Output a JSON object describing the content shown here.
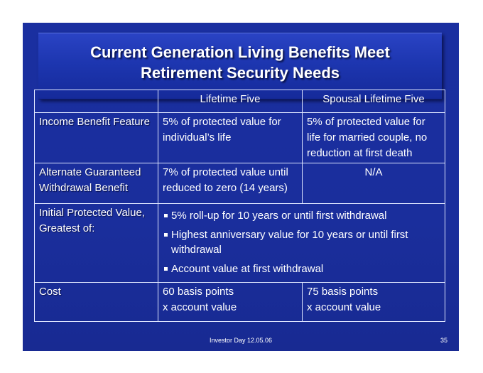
{
  "title": {
    "line1": "Current Generation Living Benefits Meet",
    "line2": "Retirement Security Needs"
  },
  "table": {
    "headers": [
      "",
      "Lifetime Five",
      "Spousal Lifetime Five"
    ],
    "rows": [
      {
        "label": "Income Benefit Feature",
        "lifetime_five": "5% of protected value for individual’s life",
        "spousal": "5% of protected value for life for married couple, no reduction at first death"
      },
      {
        "label": "Alternate Guaranteed Withdrawal Benefit",
        "lifetime_five": "7% of protected value until reduced to zero (14 years)",
        "spousal": "N/A"
      },
      {
        "label": "Initial Protected Value, Greatest of:",
        "bullets": [
          "5% roll-up for 10 years or until first withdrawal",
          "Highest anniversary value for 10 years or until first withdrawal",
          "Account value at first withdrawal"
        ]
      },
      {
        "label": "Cost",
        "lifetime_five_line1": "60 basis points",
        "lifetime_five_line2": "x account value",
        "spousal_line1": "75 basis points",
        "spousal_line2": "x account value"
      }
    ]
  },
  "footer": {
    "text": "Investor Day 12.05.06",
    "page_number": "35"
  },
  "colors": {
    "slide_background": "#1a2e9c",
    "label_text": "#ffff66",
    "body_text": "#ffffff",
    "grid_lines": "#dfe6ff"
  }
}
